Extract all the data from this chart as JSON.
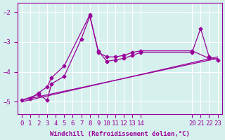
{
  "background_color": "#d6f0ee",
  "line_color": "#990099",
  "ylim": [
    -5.4,
    -1.7
  ],
  "xlim": [
    -0.5,
    23.5
  ],
  "yticks": [
    -5,
    -4,
    -3,
    -2
  ],
  "xtick_positions": [
    0,
    1,
    2,
    3,
    4,
    5,
    6,
    7,
    8,
    9,
    10,
    11,
    12,
    13,
    14,
    20,
    21,
    22,
    23
  ],
  "xtick_labels": [
    "0",
    "1",
    "2",
    "3",
    "4",
    "5",
    "6",
    "7",
    "8",
    "9",
    "10",
    "11",
    "12",
    "13",
    "14",
    "20",
    "21",
    "22",
    "23"
  ],
  "xlabel": "Windchill (Refroidissement éolien,°C)",
  "series": [
    {
      "x": [
        1,
        2,
        3,
        3.5,
        5,
        8,
        9,
        10,
        11,
        12,
        13,
        14,
        20,
        22
      ],
      "y": [
        -4.9,
        -4.7,
        -4.5,
        -4.2,
        -3.8,
        -2.1,
        -3.35,
        -3.5,
        -3.5,
        -3.45,
        -3.35,
        -3.3,
        -3.3,
        -3.55
      ],
      "marker": true
    },
    {
      "x": [
        0,
        2,
        3,
        3.5,
        5,
        7,
        8,
        9,
        10,
        11,
        12,
        13,
        14,
        20,
        21,
        22,
        23
      ],
      "y": [
        -4.95,
        -4.75,
        -4.95,
        -4.4,
        -4.15,
        -2.9,
        -2.15,
        -3.3,
        -3.65,
        -3.6,
        -3.55,
        -3.45,
        -3.35,
        -3.35,
        -2.55,
        -3.5,
        -3.6
      ],
      "marker": true
    },
    {
      "x": [
        0,
        23
      ],
      "y": [
        -5.0,
        -3.5
      ],
      "marker": false
    },
    {
      "x": [
        0,
        23
      ],
      "y": [
        -4.95,
        -3.55
      ],
      "marker": false
    }
  ]
}
